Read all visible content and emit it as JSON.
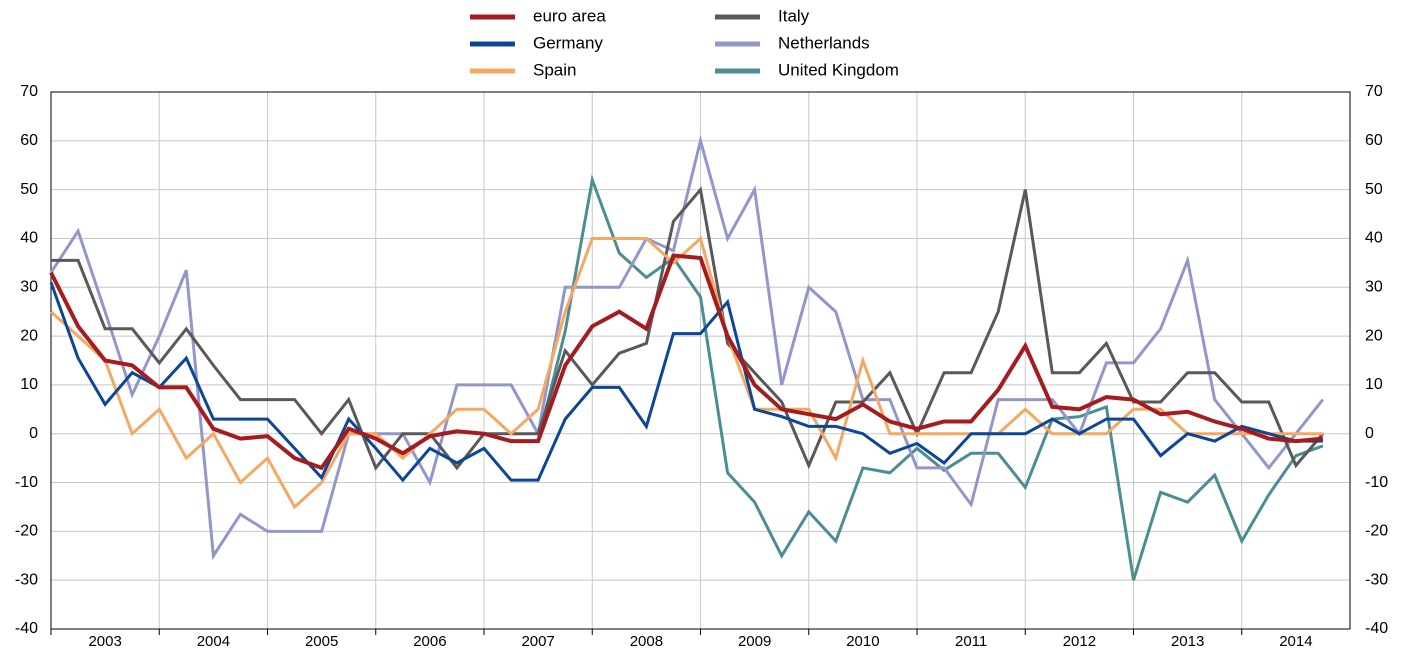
{
  "chart_data": {
    "type": "line",
    "categories": [
      "2003",
      null,
      null,
      null,
      "2004",
      null,
      null,
      null,
      "2005",
      null,
      null,
      null,
      "2006",
      null,
      null,
      null,
      "2007",
      null,
      null,
      null,
      "2008",
      null,
      null,
      null,
      "2009",
      null,
      null,
      null,
      "2010",
      null,
      null,
      null,
      "2011",
      null,
      null,
      null,
      "2012",
      null,
      null,
      null,
      "2013",
      null,
      null,
      null,
      "2014",
      null,
      null,
      null
    ],
    "ylim": [
      -40,
      70
    ],
    "yticks": [
      -40,
      -30,
      -20,
      -10,
      0,
      10,
      20,
      30,
      40,
      50,
      60,
      70
    ],
    "grid": true,
    "series": [
      {
        "name": "euro area",
        "color": "#a51c1e",
        "values": [
          33,
          22,
          15,
          14,
          9.5,
          9.5,
          1,
          -1,
          -0.5,
          -5,
          -7,
          1,
          -1,
          -4,
          -0.5,
          0.5,
          0,
          -1.5,
          -1.5,
          14,
          22,
          25,
          21.5,
          36.5,
          36,
          20,
          10,
          5,
          4,
          3,
          6,
          2.5,
          1,
          2.5,
          2.5,
          9,
          18,
          5.5,
          5,
          7.5,
          7,
          4,
          4.5,
          2.5,
          1,
          -1,
          -1.5,
          -1
        ]
      },
      {
        "name": "Germany",
        "color": "#0c4697",
        "values": [
          31,
          15.5,
          6,
          12.5,
          9.5,
          15.5,
          3,
          3,
          3,
          -3,
          -9,
          3,
          -3,
          -9.5,
          -3,
          -6,
          -3,
          -9.5,
          -9.5,
          3,
          9.5,
          9.5,
          1.5,
          20.5,
          20.5,
          27,
          5,
          3.5,
          1.5,
          1.5,
          0,
          -4,
          -2,
          -6,
          0,
          0,
          0,
          3,
          0,
          3,
          3,
          -4.5,
          0,
          -1.5,
          1.5,
          0,
          -1.5,
          -1.5
        ]
      },
      {
        "name": "Spain",
        "color": "#f5a862",
        "values": [
          25,
          20,
          15,
          0,
          5,
          -5,
          0,
          -10,
          -5,
          -15,
          -10,
          0,
          0,
          -5,
          0,
          5,
          5,
          0,
          5,
          25,
          40,
          40,
          40,
          35,
          40,
          20,
          5,
          5,
          5,
          -5,
          15,
          0,
          0,
          0,
          0,
          0,
          5,
          0,
          0,
          0,
          5,
          5,
          0,
          0,
          0,
          0,
          0,
          0
        ]
      },
      {
        "name": "Italy",
        "color": "#595959",
        "values": [
          35.5,
          35.5,
          21.5,
          21.5,
          14.5,
          21.5,
          14,
          7,
          7,
          7,
          0,
          7,
          -7,
          0,
          0,
          -7,
          0,
          0,
          0,
          17,
          10,
          16.5,
          18.5,
          43.5,
          50,
          18.5,
          12.5,
          6.5,
          -6.5,
          6.5,
          6.5,
          12.5,
          0,
          12.5,
          12.5,
          25,
          50,
          12.5,
          12.5,
          18.5,
          6.5,
          6.5,
          12.5,
          12.5,
          6.5,
          6.5,
          -6.5,
          0
        ]
      },
      {
        "name": "Netherlands",
        "color": "#9396ca",
        "values": [
          33,
          41.5,
          25,
          8,
          20,
          33.5,
          -25,
          -16.5,
          -20,
          -20,
          -20,
          0,
          0,
          0,
          -10,
          10,
          10,
          10,
          0,
          30,
          30,
          30,
          40,
          37.5,
          60,
          40,
          50,
          10,
          30,
          25,
          7,
          7,
          -7,
          -7,
          -14.5,
          7,
          7,
          7,
          0,
          14.5,
          14.5,
          21.5,
          35.5,
          7,
          0,
          -7,
          0,
          7
        ]
      },
      {
        "name": "United Kingdom",
        "color": "#4a8d93",
        "values": [
          null,
          null,
          null,
          null,
          null,
          null,
          null,
          null,
          null,
          null,
          null,
          null,
          null,
          null,
          null,
          null,
          null,
          null,
          -1.5,
          21,
          52,
          37,
          32,
          36,
          28,
          -8,
          -14,
          -25,
          -16,
          -22,
          -7,
          -8,
          -3,
          -7.5,
          -4,
          -4,
          -11,
          3,
          3.5,
          5.5,
          -30,
          -12,
          -14,
          -8.5,
          -22,
          -12.5,
          -4.5,
          -2.5
        ]
      }
    ]
  }
}
